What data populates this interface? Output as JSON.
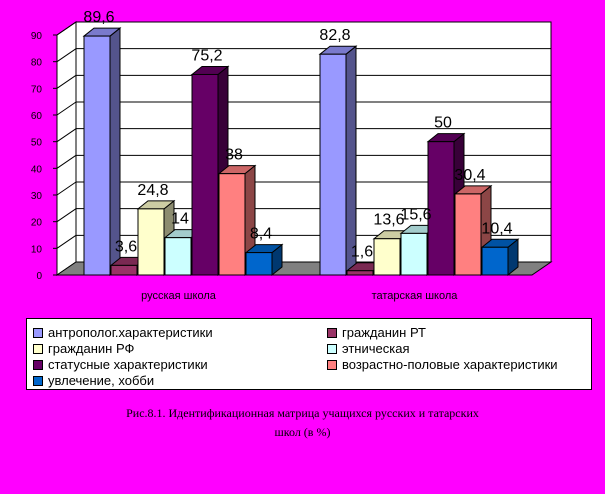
{
  "chart_data": {
    "type": "bar",
    "categories": [
      "русская школа",
      "татарская школа"
    ],
    "series": [
      {
        "name": "антрополог.характеристики",
        "values": [
          89.6,
          82.8
        ],
        "labels": [
          "89,6",
          "82,8"
        ],
        "color": "#9999FF"
      },
      {
        "name": "гражданин РТ",
        "values": [
          3.6,
          1.6
        ],
        "labels": [
          "3,6",
          "1,6"
        ],
        "color": "#993366"
      },
      {
        "name": "гражданин РФ",
        "values": [
          24.8,
          13.6
        ],
        "labels": [
          "24,8",
          "13,6"
        ],
        "color": "#FFFFCC"
      },
      {
        "name": "этническая",
        "values": [
          14,
          15.6
        ],
        "labels": [
          "14",
          "15,6"
        ],
        "color": "#CCFFFF"
      },
      {
        "name": "статусные характеристики",
        "values": [
          75.2,
          50
        ],
        "labels": [
          "75,2",
          "50"
        ],
        "color": "#660066"
      },
      {
        "name": "возрастно-половые характеристики",
        "values": [
          38,
          30.4
        ],
        "labels": [
          "38",
          "30,4"
        ],
        "color": "#FF8080"
      },
      {
        "name": "увлечение, хобби",
        "values": [
          8.4,
          10.4
        ],
        "labels": [
          "8,4",
          "10,4"
        ],
        "color": "#0066CC"
      }
    ],
    "yticks": [
      "0",
      "10",
      "20",
      "30",
      "40",
      "50",
      "60",
      "70",
      "80",
      "90"
    ],
    "ylim": [
      0,
      90
    ],
    "grid": true,
    "legend_placement": "bottom",
    "plot_background": "#FFFFFF"
  },
  "caption": {
    "line1": "Рис.8.1. Идентификационная матрица учащихся русских и татарских",
    "line2": "школ (в %)"
  }
}
